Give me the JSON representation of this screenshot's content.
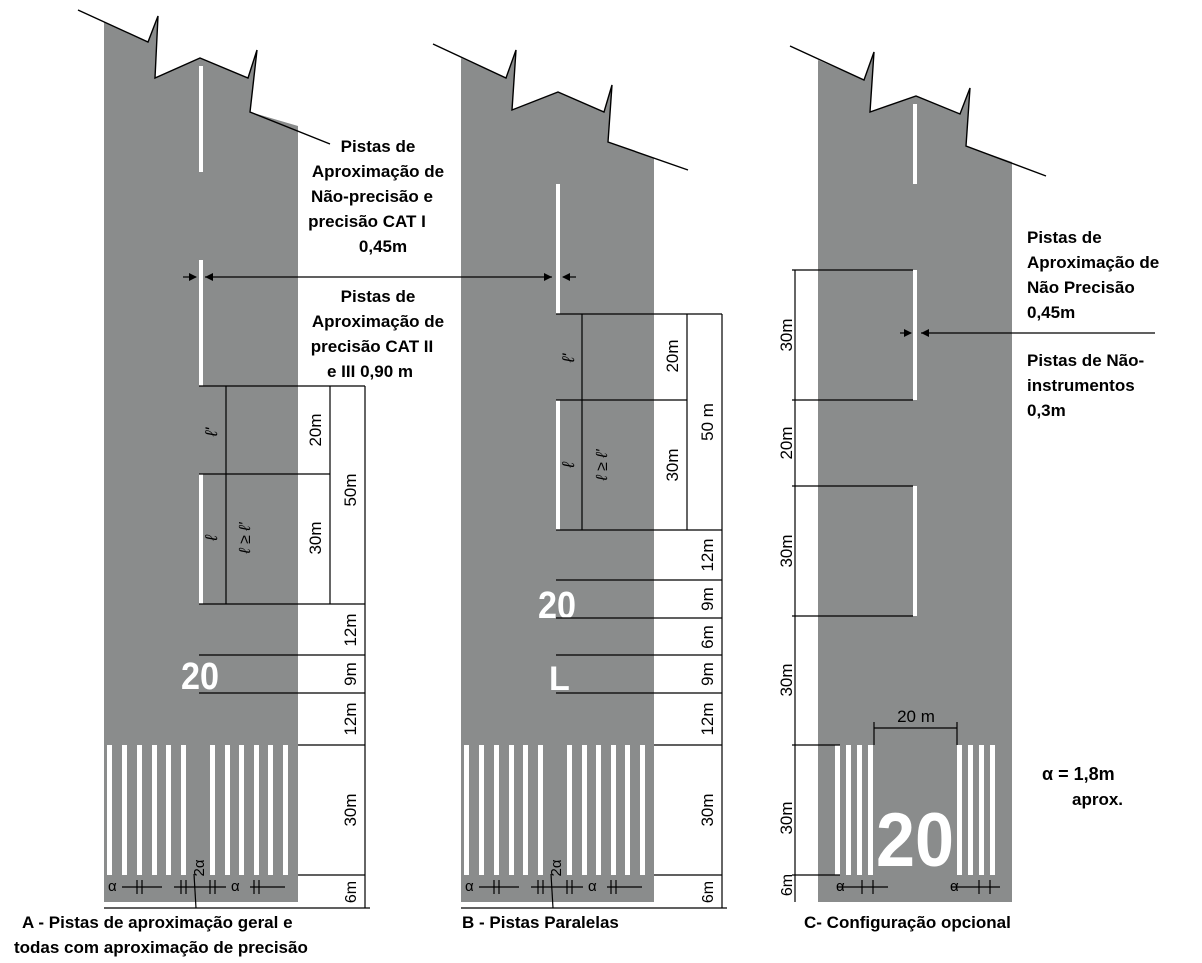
{
  "colors": {
    "runway": "#8a8c8c",
    "marking": "#ffffff",
    "line": "#000000"
  },
  "panelA": {
    "caption_line1": "A - Pistas de aproximação geral e",
    "caption_line2": "todas com aproximação de precisão",
    "dims": {
      "d20": "20m",
      "d30": "30m",
      "d50": "50m",
      "d12a": "12m",
      "d9": "9m",
      "d12b": "12m",
      "d30b": "30m",
      "d6": "6m"
    },
    "number": "20",
    "alpha": "α",
    "two_alpha": "2α",
    "l_upper": "ℓ'",
    "l_lower": "ℓ",
    "l_rel": "ℓ ≥ ℓ'"
  },
  "panelB": {
    "caption": "B - Pistas Paralelas",
    "dims": {
      "d20": "20m",
      "d30": "30m",
      "d50": "50 m",
      "d12a": "12m",
      "d9a": "9m",
      "d6": "6m",
      "d9b": "9m",
      "d12b": "12m",
      "d30b": "30m",
      "d6b": "6m"
    },
    "number": "20",
    "letter": "L",
    "alpha": "α",
    "two_alpha": "2α",
    "l_upper": "ℓ'",
    "l_lower": "ℓ",
    "l_rel": "ℓ ≥ ℓ'"
  },
  "panelC": {
    "caption": "C- Configuração opcional",
    "dims": {
      "d30a": "30m",
      "d20": "20m",
      "d30b": "30m",
      "d30c": "30m",
      "d30d": "30m",
      "d6": "6m",
      "w20": "20 m"
    },
    "number": "20",
    "alpha": "α"
  },
  "notes": {
    "nonprecision_lines": [
      "Pistas de",
      "Aproximação de",
      "Não-precisão e",
      "precisão CAT I",
      "0,45m"
    ],
    "cat2_lines": [
      "Pistas de",
      "Aproximação de",
      "precisão CAT II",
      "e III  0,90 m"
    ],
    "c_nonprecision_lines": [
      "Pistas de",
      "Aproximação de",
      "Não Precisão",
      "0,45m"
    ],
    "c_noninstrument_lines": [
      "Pistas de Não-",
      "instrumentos",
      "0,3m"
    ],
    "alpha_value": "α = 1,8m",
    "alpha_approx": "aprox."
  }
}
